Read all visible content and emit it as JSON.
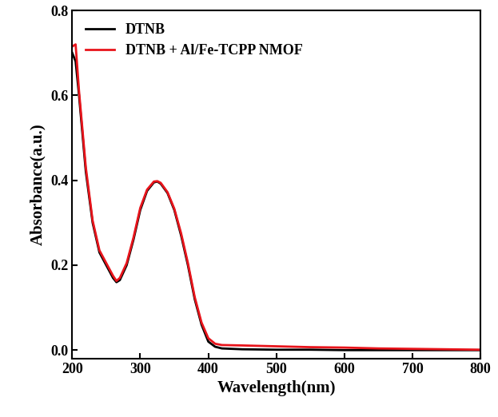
{
  "chart_data": {
    "type": "line",
    "x_label": "Wavelength(nm)",
    "y_label": "Absorbance(a.u.)",
    "x": [
      200,
      205,
      210,
      220,
      230,
      240,
      250,
      260,
      265,
      270,
      280,
      290,
      300,
      310,
      320,
      325,
      330,
      340,
      350,
      360,
      370,
      380,
      390,
      400,
      410,
      420,
      450,
      500,
      550,
      600,
      650,
      700,
      750,
      800
    ],
    "series": [
      {
        "name": "DTNB",
        "color": "#000000",
        "values": [
          0.7,
          0.68,
          0.6,
          0.42,
          0.3,
          0.23,
          0.2,
          0.17,
          0.16,
          0.165,
          0.2,
          0.26,
          0.33,
          0.375,
          0.395,
          0.397,
          0.392,
          0.37,
          0.33,
          0.27,
          0.2,
          0.12,
          0.06,
          0.02,
          0.008,
          0.004,
          0.002,
          0.001,
          0.001,
          0.0,
          0.0,
          0.0,
          0.0,
          0.0
        ]
      },
      {
        "name": "DTNB + Al/Fe-TCPP NMOF",
        "color": "#e8141b",
        "values": [
          0.715,
          0.72,
          0.61,
          0.43,
          0.305,
          0.235,
          0.205,
          0.175,
          0.163,
          0.17,
          0.205,
          0.265,
          0.335,
          0.378,
          0.397,
          0.398,
          0.394,
          0.372,
          0.333,
          0.275,
          0.205,
          0.125,
          0.065,
          0.028,
          0.015,
          0.012,
          0.011,
          0.009,
          0.007,
          0.006,
          0.004,
          0.003,
          0.002,
          0.001
        ]
      }
    ],
    "xlim": [
      200,
      800
    ],
    "xticks": [
      200,
      300,
      400,
      500,
      600,
      700,
      800
    ],
    "ylim": [
      -0.02,
      0.8
    ],
    "yticks": [
      0.0,
      0.2,
      0.4,
      0.6,
      0.8
    ],
    "legend": "upper left",
    "grid": false
  }
}
